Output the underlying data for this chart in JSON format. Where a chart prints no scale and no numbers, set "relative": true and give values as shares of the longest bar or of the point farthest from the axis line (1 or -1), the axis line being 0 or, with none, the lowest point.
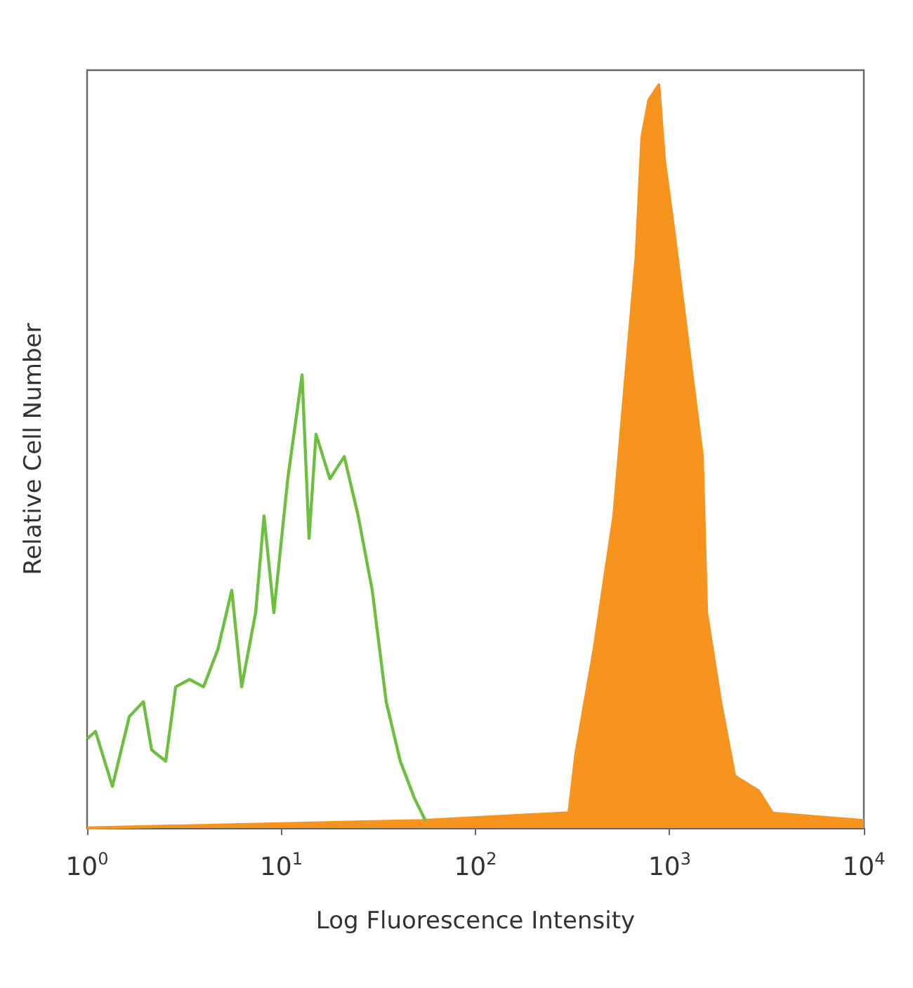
{
  "chart_data": {
    "type": "line",
    "xlabel": "Log Fluorescence Intensity",
    "ylabel": "Relative Cell Number",
    "relative": true,
    "log": "x",
    "grid": false,
    "marker": "none",
    "xlim": [
      1,
      10000
    ],
    "xticks": [
      {
        "value": 1,
        "label": "10$^{0}$"
      },
      {
        "value": 10,
        "label": "10$^{1}$"
      },
      {
        "value": 100,
        "label": "10$^{2}$"
      },
      {
        "value": 1000,
        "label": "10$^{3}$"
      },
      {
        "value": 10000,
        "label": "10$^{4}$"
      }
    ],
    "series": [
      {
        "type": "area",
        "color": "#f7941d",
        "x": [
          1,
          52.7,
          279,
          303,
          329,
          408,
          516,
          609,
          673,
          720,
          782,
          879,
          939,
          1056,
          1247,
          1473,
          1549,
          1829,
          2160,
          2868,
          3388,
          10000
        ],
        "values": [
          0,
          0.01,
          0.02,
          0.02,
          0.1,
          0.24,
          0.42,
          0.64,
          0.77,
          0.93,
          0.98,
          1,
          0.9,
          0.8,
          0.65,
          0.5,
          0.29,
          0.17,
          0.07,
          0.05,
          0.02,
          0.01
        ]
      },
      {
        "type": "line",
        "color": "#6dbf3f",
        "x": [
          1,
          1.105,
          1.35,
          1.65,
          1.95,
          2.15,
          2.54,
          2.86,
          3.37,
          3.98,
          4.71,
          5.56,
          6.25,
          7.38,
          8.15,
          9.16,
          10.8,
          12.8,
          13.9,
          15.1,
          17.8,
          21.1,
          24.9,
          29.4,
          34.7,
          41,
          48.5,
          55.3
        ],
        "values": [
          0.12,
          0.13,
          0.056,
          0.15,
          0.17,
          0.105,
          0.09,
          0.19,
          0.2,
          0.19,
          0.24,
          0.32,
          0.19,
          0.29,
          0.42,
          0.29,
          0.47,
          0.61,
          0.39,
          0.53,
          0.47,
          0.5,
          0.42,
          0.32,
          0.17,
          0.09,
          0.04,
          0.01
        ]
      }
    ]
  }
}
